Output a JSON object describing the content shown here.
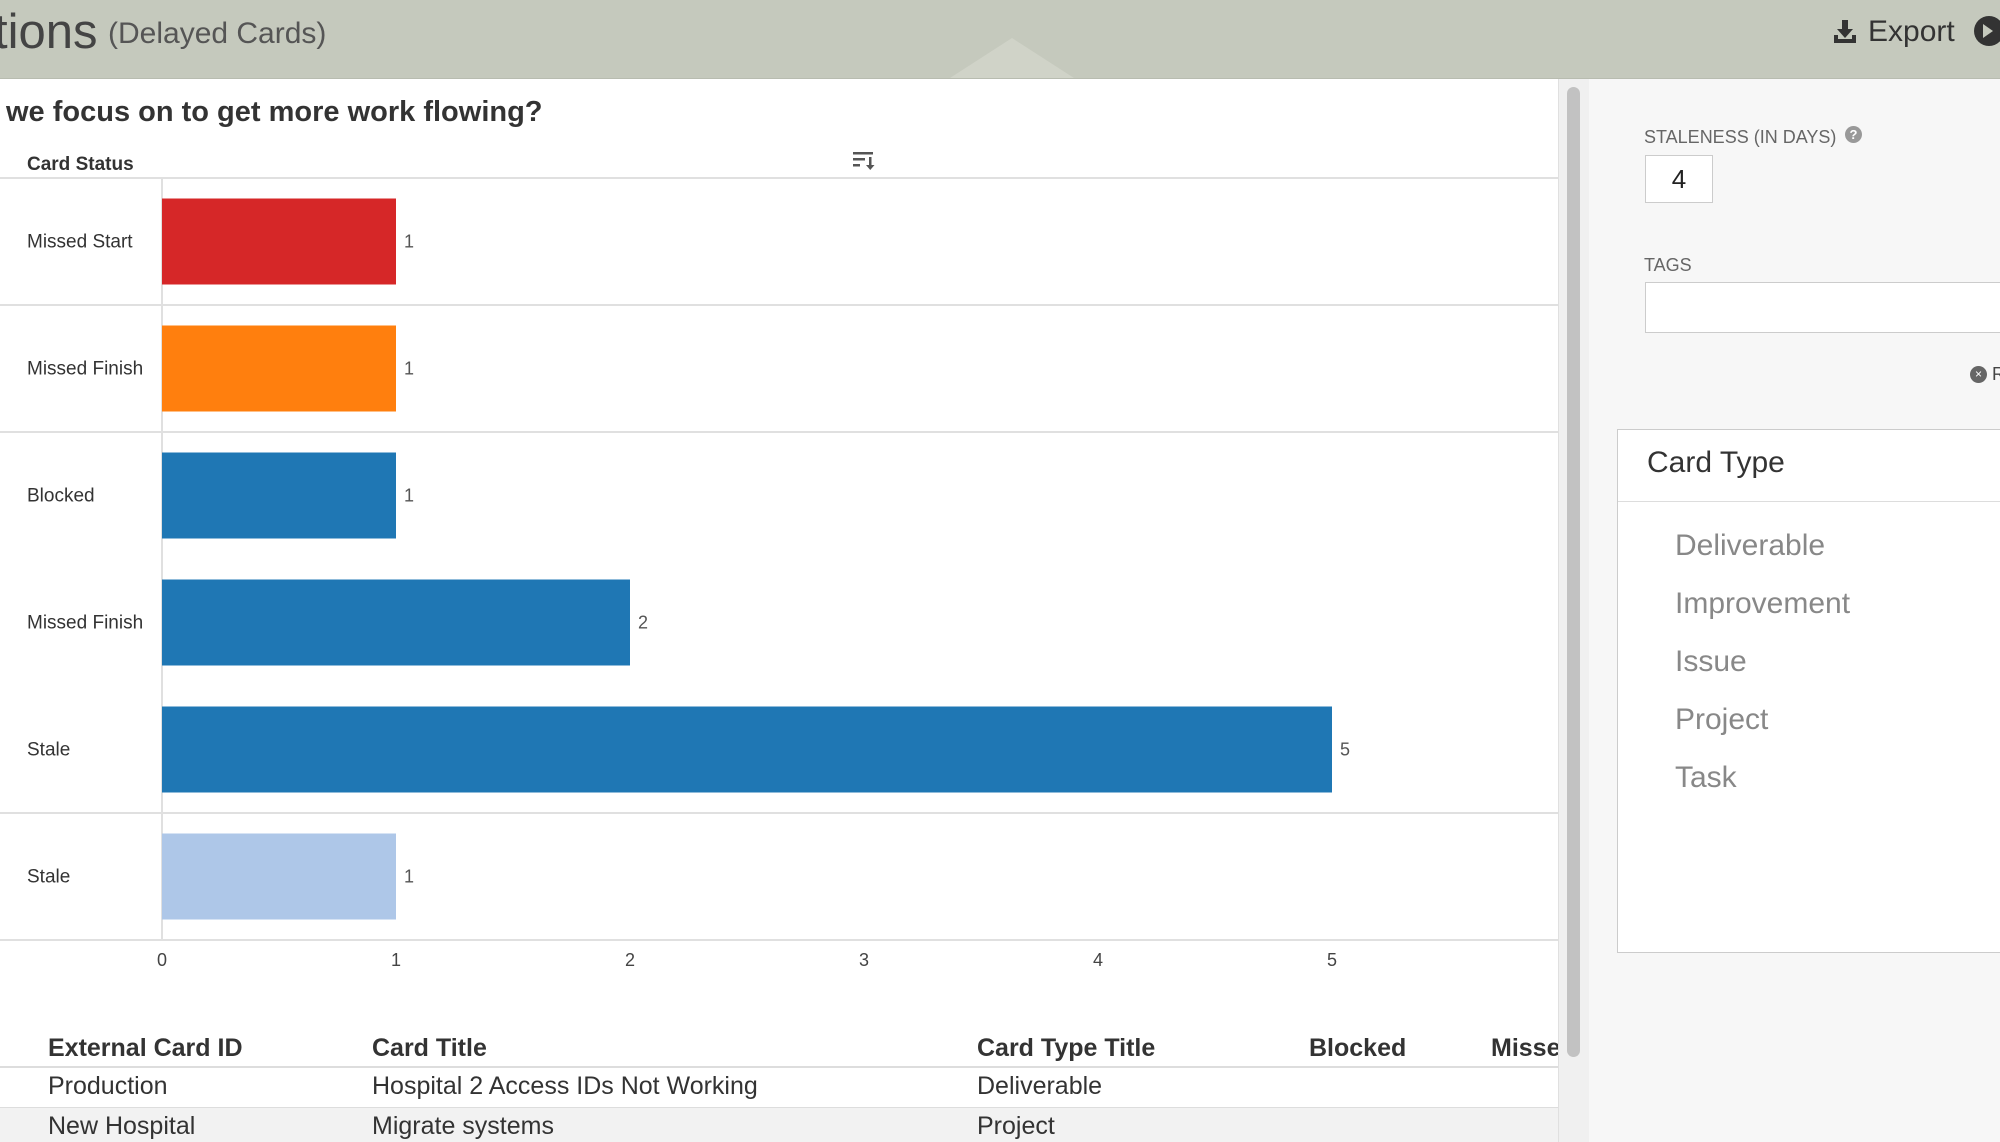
{
  "header": {
    "title": "tions",
    "subtitle": "(Delayed Cards)",
    "export_label": "Export"
  },
  "main": {
    "question": "we focus on to get more work flowing?"
  },
  "chart_data": {
    "type": "bar",
    "orientation": "horizontal",
    "title": "",
    "ylabel": "Card Status",
    "categories": [
      "Missed Start",
      "Missed Finish",
      "Blocked",
      "Missed Finish",
      "Stale",
      "Stale"
    ],
    "values": [
      1,
      1,
      1,
      2,
      5,
      1
    ],
    "colors": [
      "#d62728",
      "#ff7f0e",
      "#1f77b4",
      "#1f77b4",
      "#1f77b4",
      "#aec7e8"
    ],
    "xlim": [
      0,
      6
    ],
    "xticks": [
      0,
      1,
      2,
      3,
      4,
      5
    ],
    "grid": true
  },
  "table": {
    "columns": [
      "External Card ID",
      "Card Title",
      "Card Type Title",
      "Blocked",
      "Misse"
    ],
    "rows": [
      [
        "Production",
        "Hospital 2 Access IDs Not Working",
        "Deliverable",
        "",
        ""
      ],
      [
        "New Hospital",
        "Migrate systems",
        "Project",
        "",
        ""
      ]
    ]
  },
  "sidebar": {
    "staleness_label": "STALENESS (IN DAYS)",
    "help_glyph": "?",
    "staleness_value": "4",
    "tags_label": "TAGS",
    "clear_glyph": "×",
    "clear_text": "R",
    "card_type": {
      "title": "Card Type",
      "items": [
        "Deliverable",
        "Improvement",
        "Issue",
        "Project",
        "Task"
      ]
    }
  },
  "colors": {
    "header_bg": "#c5c9bd",
    "sidebar_bg": "#f7f7f7"
  }
}
